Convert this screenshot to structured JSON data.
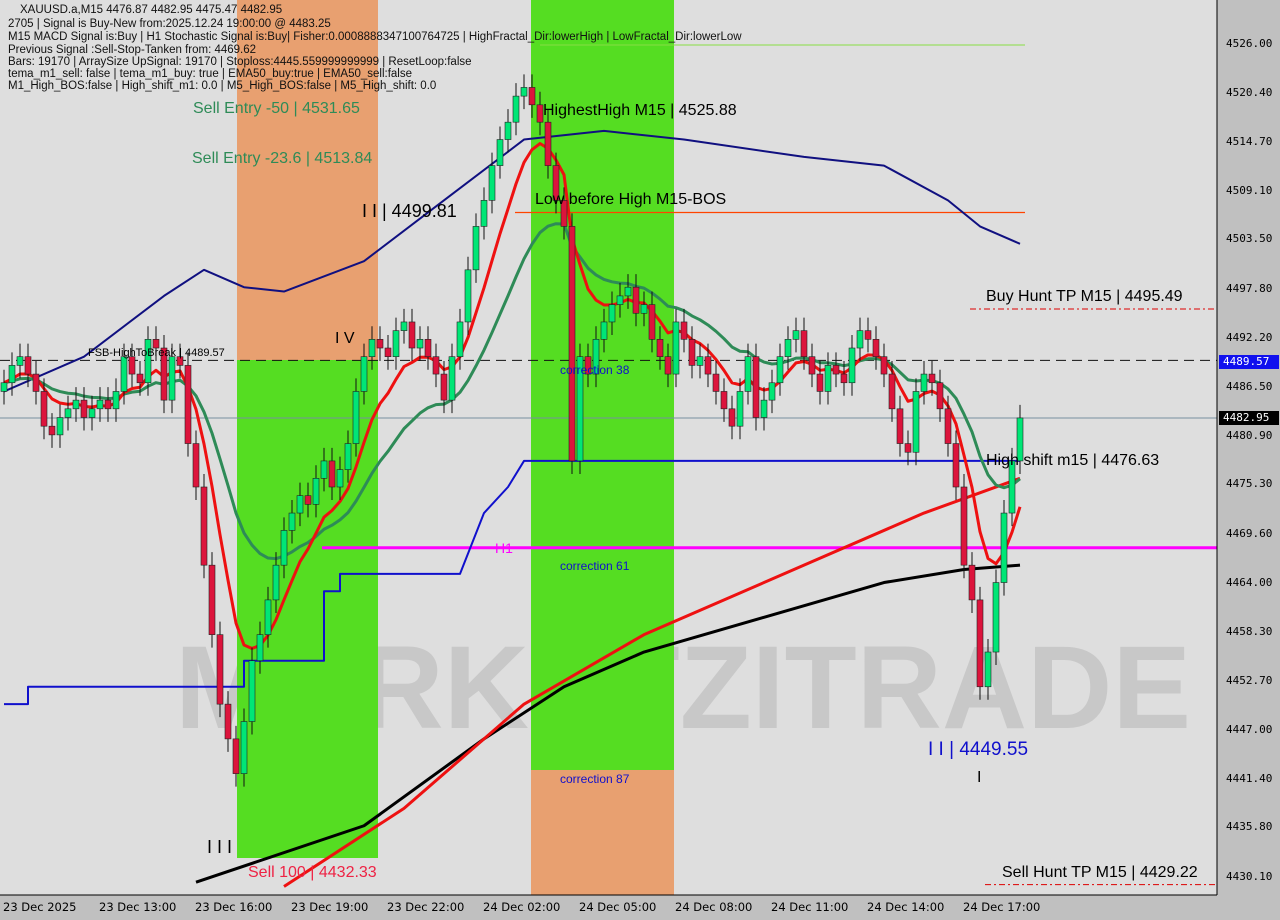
{
  "header": {
    "symbol_line": "XAUUSD.a,M15  4476.87 4482.95 4475.47 4482.95",
    "lines": [
      "2705 | Signal is Buy-New from:2025.12.24 19:00:00 @ 4483.25",
      "M15 MACD Signal is:Buy | H1 Stochastic Signal is:Buy| Fisher:0.0008888347100764725 | HighFractal_Dir:lowerHigh | LowFractal_Dir:lowerLow",
      "Previous Signal :Sell-Stop-Tanken from: 4469.62",
      "Bars: 19170 | ArraySize UpSignal: 19170 | Stoploss:4445.559999999999 | ResetLoop:false",
      "tema_m1_sell: false | tema_m1_buy: true | EMA50_buy:true | EMA50_sell:false",
      "M1_High_BOS:false | High_shift_m1: 0.0 | M5_High_BOS:false | M5_High_shift: 0.0"
    ]
  },
  "annotations": {
    "sell_entry_50": "Sell Entry -50 | 4531.65",
    "sell_entry_236": "Sell Entry -23.6 | 4513.84",
    "wave_ii_top": "I I | 4499.81",
    "wave_iv": "I V",
    "fsb": "FSB-HighToBreak | 4489.57",
    "highest_high": "HighestHigh   M15 | 4525.88",
    "low_before_high": "Low before High   M15-BOS",
    "correction_38": "correction 38",
    "correction_61": "correction 61",
    "correction_87": "correction 87",
    "h1": "H1",
    "buy_hunt": "Buy Hunt TP M15 | 4495.49",
    "high_shift": "High shift m15 | 4476.63",
    "wave_ii_bottom": "I I | 4449.55",
    "wave_i": "I",
    "wave_iii": "I I I",
    "sell_100": "Sell 100 | 4432.33",
    "sell_hunt": "Sell Hunt TP M15 | 4429.22",
    "watermark": "MARKETZITRADE"
  },
  "price_tags": {
    "fsb_level": "4489.57",
    "current": "4482.95"
  },
  "colors": {
    "bull": "#00e676",
    "bear": "#dc143c",
    "fast_ma": "#ee1111",
    "mid_ma": "#2e8b57",
    "navy_ma": "#101080",
    "slow_ma": "#ee1111",
    "long_ma": "#000000",
    "step_line": "#1010cc",
    "h1_level": "#ff00ff",
    "zone_orange": "#e8a070",
    "zone_green": "#55dd22"
  },
  "chart_data": {
    "type": "candlestick",
    "symbol": "XAUUSD.a",
    "timeframe": "M15",
    "ylim": [
      4428.5,
      4531.5
    ],
    "y_ticks": [
      "4526.00",
      "4520.40",
      "4514.70",
      "4509.10",
      "4503.50",
      "4497.80",
      "4492.20",
      "4486.50",
      "4480.90",
      "4475.30",
      "4469.60",
      "4464.00",
      "4458.30",
      "4452.70",
      "4447.00",
      "4441.40",
      "4435.80",
      "4430.10"
    ],
    "x_ticks": [
      "23 Dec 2025",
      "23 Dec 13:00",
      "23 Dec 16:00",
      "23 Dec 19:00",
      "23 Dec 22:00",
      "24 Dec 02:00",
      "24 Dec 05:00",
      "24 Dec 08:00",
      "24 Dec 11:00",
      "24 Dec 14:00",
      "24 Dec 17:00"
    ],
    "closes": [
      4487,
      4489,
      4490,
      4488,
      4486,
      4482,
      4481,
      4483,
      4484,
      4485,
      4483,
      4484,
      4485,
      4484,
      4486,
      4490,
      4488,
      4487,
      4492,
      4491,
      4485,
      4490,
      4489,
      4480,
      4475,
      4466,
      4458,
      4450,
      4446,
      4442,
      4448,
      4455,
      4458,
      4462,
      4466,
      4470,
      4472,
      4474,
      4473,
      4476,
      4478,
      4475,
      4477,
      4480,
      4486,
      4490,
      4492,
      4491,
      4490,
      4493,
      4494,
      4491,
      4492,
      4490,
      4488,
      4485,
      4490,
      4494,
      4500,
      4505,
      4508,
      4512,
      4515,
      4517,
      4520,
      4521,
      4519,
      4517,
      4512,
      4508,
      4505,
      4478,
      4490,
      4488,
      4492,
      4494,
      4496,
      4497,
      4498,
      4495,
      4496,
      4492,
      4490,
      4488,
      4494,
      4492,
      4489,
      4490,
      4488,
      4486,
      4484,
      4482,
      4486,
      4490,
      4483,
      4485,
      4487,
      4490,
      4492,
      4493,
      4490,
      4488,
      4486,
      4489,
      4488,
      4487,
      4491,
      4493,
      4492,
      4490,
      4488,
      4484,
      4480,
      4479,
      4486,
      4488,
      4487,
      4484,
      4480,
      4475,
      4466,
      4462,
      4452,
      4456,
      4464,
      4472,
      4478,
      4482.95
    ],
    "navy_ma": [
      [
        0,
        4486
      ],
      [
        10,
        4490
      ],
      [
        20,
        4497
      ],
      [
        25,
        4500
      ],
      [
        30,
        4498
      ],
      [
        35,
        4497.5
      ],
      [
        45,
        4501
      ],
      [
        55,
        4508
      ],
      [
        65,
        4515
      ],
      [
        75,
        4516
      ],
      [
        85,
        4515
      ],
      [
        100,
        4513
      ],
      [
        110,
        4512
      ],
      [
        118,
        4508
      ],
      [
        122,
        4505
      ],
      [
        127,
        4503
      ]
    ],
    "long_ma": [
      [
        24,
        4429.5
      ],
      [
        45,
        4436
      ],
      [
        60,
        4446
      ],
      [
        70,
        4452
      ],
      [
        80,
        4456
      ],
      [
        95,
        4460
      ],
      [
        110,
        4464
      ],
      [
        120,
        4465.5
      ],
      [
        127,
        4466
      ]
    ],
    "slow_ma": [
      [
        35,
        4429
      ],
      [
        50,
        4438
      ],
      [
        65,
        4450
      ],
      [
        80,
        4458
      ],
      [
        100,
        4466
      ],
      [
        115,
        4472
      ],
      [
        127,
        4476
      ]
    ],
    "step_line": [
      [
        0,
        4450
      ],
      [
        3,
        4450
      ],
      [
        3,
        4452
      ],
      [
        30,
        4452
      ],
      [
        30,
        4455
      ],
      [
        40,
        4455
      ],
      [
        40,
        4463
      ],
      [
        42,
        4463
      ],
      [
        42,
        4465
      ],
      [
        57,
        4465
      ],
      [
        60,
        4472
      ],
      [
        63,
        4475
      ],
      [
        65,
        4478
      ],
      [
        127,
        4478
      ]
    ],
    "levels": {
      "h1": 4468.0,
      "fsb": 4489.57,
      "current": 4482.95,
      "low_before_high": 4506.6,
      "buy_hunt": 4495.49,
      "sell_hunt": 4429.22
    }
  }
}
